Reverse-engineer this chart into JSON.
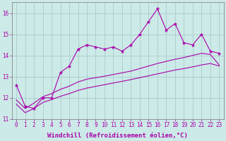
{
  "xlabel": "Windchill (Refroidissement éolien,°C)",
  "bg_color": "#cceae7",
  "grid_color": "#aacccc",
  "line_color": "#aa00aa",
  "x_data": [
    0,
    1,
    2,
    3,
    4,
    5,
    6,
    7,
    8,
    9,
    10,
    11,
    12,
    13,
    14,
    15,
    16,
    17,
    18,
    19,
    20,
    21,
    22,
    23
  ],
  "line1_y": [
    12.6,
    11.6,
    11.5,
    12.0,
    12.0,
    13.2,
    13.5,
    14.3,
    14.5,
    14.4,
    14.3,
    14.4,
    14.2,
    14.5,
    15.0,
    15.6,
    16.2,
    15.2,
    15.5,
    14.6,
    14.5,
    15.0,
    14.2,
    14.1
  ],
  "line2_y": [
    11.9,
    11.5,
    11.75,
    12.05,
    12.2,
    12.4,
    12.55,
    12.75,
    12.88,
    12.95,
    13.02,
    13.1,
    13.18,
    13.26,
    13.38,
    13.5,
    13.62,
    13.72,
    13.82,
    13.9,
    14.0,
    14.1,
    14.05,
    13.55
  ],
  "line3_y": [
    11.7,
    11.3,
    11.5,
    11.78,
    11.92,
    12.07,
    12.2,
    12.35,
    12.46,
    12.54,
    12.62,
    12.7,
    12.78,
    12.86,
    12.95,
    13.04,
    13.13,
    13.22,
    13.31,
    13.38,
    13.46,
    13.55,
    13.62,
    13.5
  ],
  "ylim": [
    11.0,
    16.5
  ],
  "xlim": [
    -0.5,
    23.5
  ],
  "yticks": [
    11,
    12,
    13,
    14,
    15,
    16
  ],
  "xticks": [
    0,
    1,
    2,
    3,
    4,
    5,
    6,
    7,
    8,
    9,
    10,
    11,
    12,
    13,
    14,
    15,
    16,
    17,
    18,
    19,
    20,
    21,
    22,
    23
  ],
  "tick_fontsize": 5.5,
  "label_fontsize": 6.5
}
